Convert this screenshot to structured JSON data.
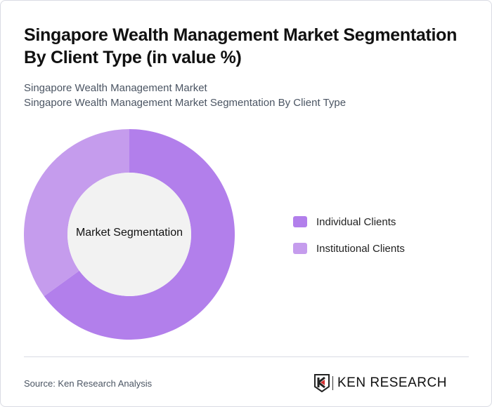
{
  "header": {
    "title": "Singapore Wealth Management Market Segmentation By Client Type (in value %)",
    "subtitle_line1": "Singapore Wealth Management Market",
    "subtitle_line2": "Singapore Wealth Management Market Segmentation By Client Type"
  },
  "chart": {
    "center_label": "Market Segmentation",
    "legend": [
      {
        "label": "Individual Clients",
        "color": "#b27feb"
      },
      {
        "label": "Institutional Clients",
        "color": "#c59ced"
      }
    ]
  },
  "footer": {
    "source": "Source: Ken Research Analysis",
    "logo_text": "KEN RESEARCH"
  },
  "chart_data": {
    "type": "pie",
    "subtype": "donut",
    "title": "Singapore Wealth Management Market Segmentation By Client Type (in value %)",
    "center_label": "Market Segmentation",
    "categories": [
      "Individual Clients",
      "Institutional Clients"
    ],
    "values": [
      65,
      35
    ],
    "colors": [
      "#b27feb",
      "#c59ced"
    ],
    "legend_position": "right"
  }
}
